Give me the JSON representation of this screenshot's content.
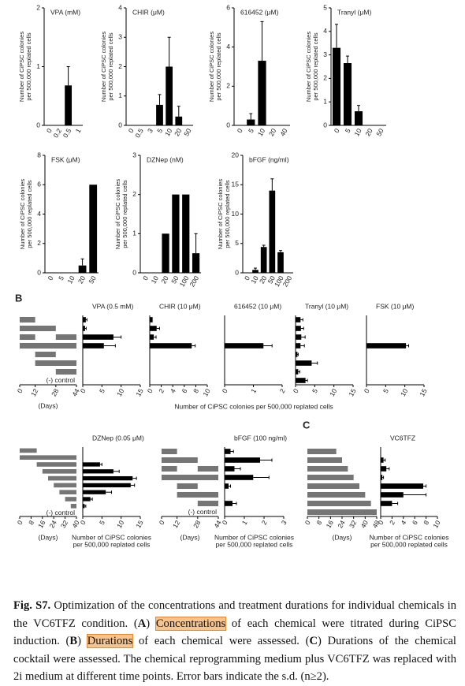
{
  "panel_labels": [
    "B",
    "C"
  ],
  "panel_b": {
    "x_label": "Number of CiPSC colonies per 500,000 replated cells"
  },
  "chart_data": [
    {
      "type": "bar",
      "title": "VPA (mM)",
      "y_label": [
        "Number of CiPSC colonies",
        "per 500,000 replated cells"
      ],
      "categories": [
        "0",
        "0.2",
        "0.5",
        "1"
      ],
      "values": [
        0,
        0,
        0.68,
        0
      ],
      "errors": [
        0,
        0,
        0.32,
        0
      ],
      "ylim": [
        0,
        2
      ],
      "yticks": [
        0,
        1,
        2
      ]
    },
    {
      "type": "bar",
      "title": "CHIR (μM)",
      "y_label": [
        "Number of CiPSC colonies",
        "per 500,000 replated cells"
      ],
      "categories": [
        "0",
        "0.5",
        "3",
        "5",
        "10",
        "20",
        "50"
      ],
      "values": [
        0,
        0,
        0,
        0.7,
        2,
        0.3,
        0
      ],
      "errors": [
        0,
        0,
        0,
        0.35,
        1,
        0.35,
        0
      ],
      "ylim": [
        0,
        4
      ],
      "yticks": [
        0,
        1,
        2,
        3,
        4
      ]
    },
    {
      "type": "bar",
      "title": "616452 (μM)",
      "y_label": [
        "Number of CiPSC colonies",
        "per 500,000 replated cells"
      ],
      "categories": [
        "0",
        "5",
        "10",
        "20",
        "40"
      ],
      "values": [
        0,
        0.3,
        3.3,
        0,
        0
      ],
      "errors": [
        0,
        0.3,
        2,
        0,
        0
      ],
      "ylim": [
        0,
        6
      ],
      "yticks": [
        0,
        2,
        4,
        6
      ]
    },
    {
      "type": "bar",
      "title": "Tranyl (μM)",
      "y_label": [
        "Number of CiPSC colonies",
        "per 500,000 replated cells"
      ],
      "categories": [
        "0",
        "5",
        "10",
        "20",
        "50"
      ],
      "values": [
        3.3,
        2.65,
        0.6,
        0,
        0
      ],
      "errors": [
        1,
        0.3,
        0.25,
        0,
        0
      ],
      "ylim": [
        0,
        5
      ],
      "yticks": [
        0,
        1,
        2,
        3,
        4,
        5
      ]
    },
    {
      "type": "bar",
      "title": "FSK (μM)",
      "y_label": [
        "Number of CiPSC colonies",
        "per 500,000 replated cells"
      ],
      "categories": [
        "0",
        "5",
        "10",
        "20",
        "50"
      ],
      "values": [
        0,
        0,
        0,
        0.5,
        6
      ],
      "errors": [
        0,
        0,
        0,
        0.45,
        0
      ],
      "ylim": [
        0,
        8
      ],
      "yticks": [
        0,
        2,
        4,
        6,
        8
      ]
    },
    {
      "type": "bar",
      "title": "DZNep (nM)",
      "y_label": [
        "Number of CiPSC colonies",
        "per 500,000 replated cells"
      ],
      "categories": [
        "0",
        "10",
        "20",
        "50",
        "100",
        "200"
      ],
      "values": [
        0,
        0,
        1,
        2,
        2,
        0.5
      ],
      "errors": [
        0,
        0,
        0,
        0,
        0,
        0.5
      ],
      "ylim": [
        0,
        3
      ],
      "yticks": [
        0,
        1,
        2,
        3
      ]
    },
    {
      "type": "bar",
      "title": "bFGF (ng/ml)",
      "y_label": [
        "Number of CiPSC colonies",
        "per 500,000 replated cells"
      ],
      "categories": [
        "0",
        "10",
        "20",
        "50",
        "100",
        "200"
      ],
      "values": [
        0,
        0.5,
        4.4,
        14,
        3.5,
        0
      ],
      "errors": [
        0,
        0.3,
        0.3,
        2,
        0.3,
        0
      ],
      "ylim": [
        0,
        20
      ],
      "yticks": [
        0,
        5,
        10,
        15,
        20
      ]
    },
    {
      "type": "timeline",
      "x_label": "(Days)",
      "annotation": "(-) control",
      "rows": [
        [
          [
            0,
            12
          ]
        ],
        [
          [
            0,
            28
          ]
        ],
        [
          [
            0,
            12
          ],
          [
            28,
            44
          ]
        ],
        [
          [
            0,
            44
          ]
        ],
        [
          [
            12,
            28
          ]
        ],
        [
          [
            12,
            44
          ]
        ],
        [
          [
            28,
            44
          ]
        ],
        []
      ],
      "xlim": [
        0,
        44
      ],
      "xticks": [
        0,
        12,
        28,
        44
      ]
    },
    {
      "type": "barh",
      "title": "VPA (0.5 mM)",
      "values": [
        0.8,
        0.6,
        8,
        5.5,
        0,
        0,
        0,
        0
      ],
      "errors": [
        0.3,
        0.3,
        2,
        3,
        0,
        0,
        0,
        0
      ],
      "xlim": [
        0,
        15
      ],
      "xticks": [
        0,
        5,
        10,
        15
      ]
    },
    {
      "type": "barh",
      "title": "CHIR (10 μM)",
      "values": [
        0.5,
        1.2,
        0.7,
        7.3,
        0,
        0,
        0,
        0
      ],
      "errors": [
        0,
        0.5,
        0.4,
        0.6,
        0,
        0,
        0,
        0
      ],
      "xlim": [
        0,
        10
      ],
      "xticks": [
        0,
        2,
        4,
        6,
        8,
        10
      ]
    },
    {
      "type": "barh",
      "title": "616452 (10 μM)",
      "values": [
        0,
        0,
        0,
        1.35,
        0,
        0,
        0,
        0
      ],
      "errors": [
        0,
        0,
        0,
        0.3,
        0,
        0,
        0,
        0
      ],
      "xlim": [
        0,
        2
      ],
      "xticks": [
        0,
        1,
        2
      ]
    },
    {
      "type": "barh",
      "title": "Tranyl (10 μM)",
      "values": [
        1.3,
        1.4,
        1.5,
        1.3,
        0.5,
        4.2,
        0.7,
        2.6
      ],
      "errors": [
        0.6,
        0.7,
        1,
        1,
        0.2,
        1.5,
        0.4,
        0.5
      ],
      "xlim": [
        0,
        15
      ],
      "xticks": [
        0,
        5,
        10,
        15
      ]
    },
    {
      "type": "barh",
      "title": "FSK (10 μM)",
      "values": [
        0,
        0,
        0,
        10.3,
        0,
        0,
        0,
        0
      ],
      "errors": [
        0,
        0,
        0,
        0.7,
        0,
        0,
        0,
        0
      ],
      "xlim": [
        0,
        15
      ],
      "xticks": [
        0,
        5,
        10,
        15
      ]
    },
    {
      "type": "timeline",
      "x_label": "(Days)",
      "annotation": "(-) control",
      "rows": [
        [
          [
            0,
            12
          ]
        ],
        [
          [
            0,
            40
          ]
        ],
        [
          [
            12,
            40
          ]
        ],
        [
          [
            16,
            40
          ]
        ],
        [
          [
            20,
            40
          ]
        ],
        [
          [
            24,
            40
          ]
        ],
        [
          [
            28,
            40
          ]
        ],
        [
          [
            32,
            40
          ]
        ],
        [
          [
            36,
            40
          ]
        ],
        []
      ],
      "xlim": [
        0,
        40
      ],
      "xticks": [
        0,
        8,
        16,
        24,
        32,
        40
      ]
    },
    {
      "type": "barh",
      "title": "DZNep (0.05 μM)",
      "x_label": [
        "Number of CiPSC colonies",
        "per 500,000 replated cells"
      ],
      "values": [
        0,
        0,
        4.5,
        8,
        13,
        12.5,
        6,
        2,
        0.5,
        0
      ],
      "errors": [
        0,
        0,
        0.5,
        1.5,
        1,
        1,
        1.5,
        0.5,
        0.3,
        0
      ],
      "xlim": [
        0,
        15
      ],
      "xticks": [
        0,
        5,
        10,
        15
      ]
    },
    {
      "type": "timeline",
      "x_label": "(Days)",
      "annotation": "(-) control",
      "rows": [
        [
          [
            0,
            12
          ]
        ],
        [
          [
            0,
            28
          ]
        ],
        [
          [
            0,
            12
          ],
          [
            28,
            44
          ]
        ],
        [
          [
            0,
            44
          ]
        ],
        [
          [
            12,
            28
          ]
        ],
        [
          [
            12,
            44
          ]
        ],
        [
          [
            28,
            44
          ]
        ],
        []
      ],
      "xlim": [
        0,
        44
      ],
      "xticks": [
        0,
        12,
        28,
        44
      ]
    },
    {
      "type": "barh",
      "title": "bFGF (100 ng/ml)",
      "x_label": [
        "Number of CiPSC colonies",
        "per 500,000 replated cells"
      ],
      "values": [
        0.3,
        1.8,
        0.5,
        1.45,
        0.2,
        0,
        0.4,
        0
      ],
      "errors": [
        0.15,
        0.6,
        0.3,
        0.8,
        0.1,
        0,
        0.2,
        0
      ],
      "xlim": [
        0,
        3
      ],
      "xticks": [
        0,
        1,
        2,
        3
      ]
    },
    {
      "type": "timeline",
      "x_label": "(Days)",
      "rows": [
        [
          [
            0,
            20
          ]
        ],
        [
          [
            0,
            24
          ]
        ],
        [
          [
            0,
            28
          ]
        ],
        [
          [
            0,
            32
          ]
        ],
        [
          [
            0,
            36
          ]
        ],
        [
          [
            0,
            40
          ]
        ],
        [
          [
            0,
            44
          ]
        ],
        [
          [
            0,
            48
          ]
        ]
      ],
      "xlim": [
        0,
        48
      ],
      "xticks": [
        0,
        8,
        16,
        24,
        32,
        40,
        48
      ]
    },
    {
      "type": "barh",
      "title": "VC6TFZ",
      "x_label": [
        "Number of CiPSC colonies",
        "per 500,000 replated cells"
      ],
      "values": [
        0,
        0.5,
        1,
        0.3,
        7.5,
        4,
        2,
        0
      ],
      "errors": [
        0,
        0.3,
        0.5,
        0.2,
        0.5,
        4,
        1,
        0
      ],
      "xlim": [
        0,
        10
      ],
      "xticks": [
        0,
        2,
        4,
        6,
        8,
        10
      ]
    }
  ],
  "caption": {
    "segments": [
      {
        "text": "Fig. S7.",
        "bold": true
      },
      {
        "text": " Optimization of the concentrations and treatment durations for individual chemicals in the VC6TFZ condition. ("
      },
      {
        "text": "A",
        "bold": true
      },
      {
        "text": ") "
      },
      {
        "text": "Concentrations",
        "highlight": true
      },
      {
        "text": " of each chemical were titrated during CiPSC induction. ("
      },
      {
        "text": "B",
        "bold": true
      },
      {
        "text": ") "
      },
      {
        "text": "Durations",
        "highlight": true
      },
      {
        "text": " of each chemical were assessed. ("
      },
      {
        "text": "C",
        "bold": true
      },
      {
        "text": ") Durations of the chemical cocktail were assessed. The chemical reprogramming medium plus VC6TFZ was replaced with 2i medium at different time points. Error bars indicate the s.d. (n≥2)."
      }
    ]
  }
}
